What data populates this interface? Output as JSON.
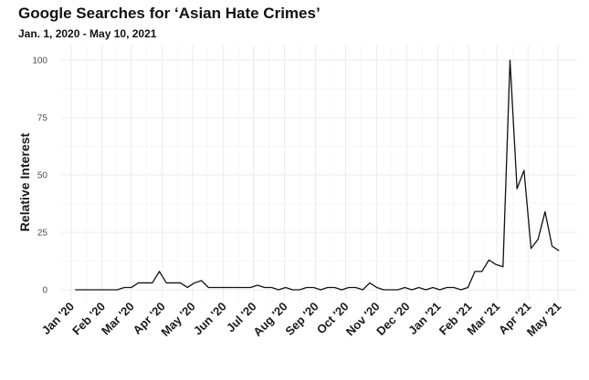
{
  "chart_data": {
    "type": "line",
    "title": "Google Searches for ‘Asian Hate Crimes’",
    "subtitle": "Jan. 1, 2020 - May 10, 2021",
    "xlabel": "",
    "ylabel": "Relative Interest",
    "ylim": [
      0,
      100
    ],
    "yticks": [
      0,
      25,
      50,
      75,
      100
    ],
    "xlim": [
      "2019-12-22",
      "2021-05-20"
    ],
    "xticks": [
      {
        "date": "2020-01-01",
        "label": "Jan '20"
      },
      {
        "date": "2020-02-01",
        "label": "Feb '20"
      },
      {
        "date": "2020-03-01",
        "label": "Mar '20"
      },
      {
        "date": "2020-04-01",
        "label": "Apr '20"
      },
      {
        "date": "2020-05-01",
        "label": "May '20"
      },
      {
        "date": "2020-06-01",
        "label": "Jun '20"
      },
      {
        "date": "2020-07-01",
        "label": "Jul '20"
      },
      {
        "date": "2020-08-01",
        "label": "Aug '20"
      },
      {
        "date": "2020-09-01",
        "label": "Sep '20"
      },
      {
        "date": "2020-10-01",
        "label": "Oct '20"
      },
      {
        "date": "2020-11-01",
        "label": "Nov '20"
      },
      {
        "date": "2020-12-01",
        "label": "Dec '20"
      },
      {
        "date": "2021-01-01",
        "label": "Jan '21"
      },
      {
        "date": "2021-02-01",
        "label": "Feb '21"
      },
      {
        "date": "2021-03-01",
        "label": "Mar '21"
      },
      {
        "date": "2021-04-01",
        "label": "Apr '21"
      },
      {
        "date": "2021-05-01",
        "label": "May '21"
      }
    ],
    "grid": true,
    "legend": "none",
    "line_color": "#111111",
    "series": [
      {
        "x": [
          "2020-01-05",
          "2020-01-12",
          "2020-01-19",
          "2020-01-26",
          "2020-02-02",
          "2020-02-09",
          "2020-02-16",
          "2020-02-23",
          "2020-03-01",
          "2020-03-08",
          "2020-03-15",
          "2020-03-22",
          "2020-03-29",
          "2020-04-05",
          "2020-04-12",
          "2020-04-19",
          "2020-04-26",
          "2020-05-03",
          "2020-05-10",
          "2020-05-17",
          "2020-05-24",
          "2020-05-31",
          "2020-06-07",
          "2020-06-14",
          "2020-06-21",
          "2020-06-28",
          "2020-07-05",
          "2020-07-12",
          "2020-07-19",
          "2020-07-26",
          "2020-08-02",
          "2020-08-09",
          "2020-08-16",
          "2020-08-23",
          "2020-08-30",
          "2020-09-06",
          "2020-09-13",
          "2020-09-20",
          "2020-09-27",
          "2020-10-04",
          "2020-10-11",
          "2020-10-18",
          "2020-10-25",
          "2020-11-01",
          "2020-11-08",
          "2020-11-15",
          "2020-11-22",
          "2020-11-29",
          "2020-12-06",
          "2020-12-13",
          "2020-12-20",
          "2020-12-27",
          "2021-01-03",
          "2021-01-10",
          "2021-01-17",
          "2021-01-24",
          "2021-01-31",
          "2021-02-07",
          "2021-02-14",
          "2021-02-21",
          "2021-02-28",
          "2021-03-07",
          "2021-03-14",
          "2021-03-21",
          "2021-03-28",
          "2021-04-04",
          "2021-04-11",
          "2021-04-18",
          "2021-04-25",
          "2021-05-02"
        ],
        "y": [
          0,
          0,
          0,
          0,
          0,
          0,
          0,
          1,
          1,
          3,
          3,
          3,
          8,
          3,
          3,
          3,
          1,
          3,
          4,
          1,
          1,
          1,
          1,
          1,
          1,
          1,
          2,
          1,
          1,
          0,
          1,
          0,
          0,
          1,
          1,
          0,
          1,
          1,
          0,
          1,
          1,
          0,
          3,
          1,
          0,
          0,
          0,
          1,
          0,
          1,
          0,
          1,
          0,
          1,
          1,
          0,
          1,
          8,
          8,
          13,
          11,
          10,
          100,
          44,
          52,
          18,
          22,
          34,
          19,
          17
        ]
      }
    ]
  }
}
